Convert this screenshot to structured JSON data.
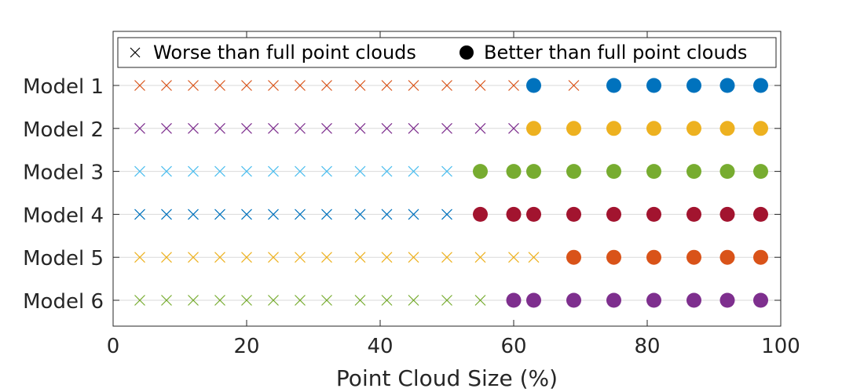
{
  "chart_data": {
    "type": "scatter",
    "xlabel": "Point Cloud Size (%)",
    "ylabel": "",
    "xlim": [
      0,
      100
    ],
    "xticks": [
      0,
      20,
      40,
      60,
      80,
      100
    ],
    "grid": "horizontal lines at each model row",
    "legend": {
      "placement": "top",
      "entries": [
        {
          "marker": "x",
          "label": "Worse than full point clouds",
          "color": "#000000"
        },
        {
          "marker": "filled-circle",
          "label": "Better than full point clouds",
          "color": "#000000"
        }
      ]
    },
    "x": [
      4,
      8,
      12,
      16,
      20,
      24,
      28,
      32,
      37,
      41,
      45,
      50,
      55,
      60,
      63,
      69,
      75,
      81,
      87,
      92,
      97
    ],
    "categories": [
      "Model 1",
      "Model 2",
      "Model 3",
      "Model 4",
      "Model 5",
      "Model 6"
    ],
    "series": [
      {
        "name": "Model 1",
        "x_color": "#D95319",
        "dot_color": "#0072BD",
        "x": [
          4,
          8,
          12,
          16,
          20,
          24,
          28,
          32,
          37,
          41,
          45,
          50,
          55,
          60,
          63,
          69,
          75,
          81,
          87,
          92,
          97
        ],
        "marker": [
          "x",
          "x",
          "x",
          "x",
          "x",
          "x",
          "x",
          "x",
          "x",
          "x",
          "x",
          "x",
          "x",
          "x",
          "o",
          "x",
          "o",
          "o",
          "o",
          "o",
          "o"
        ]
      },
      {
        "name": "Model 2",
        "x_color": "#7E2F8E",
        "dot_color": "#EDB120",
        "x": [
          4,
          8,
          12,
          16,
          20,
          24,
          28,
          32,
          37,
          41,
          45,
          50,
          55,
          60,
          63,
          69,
          75,
          81,
          87,
          92,
          97
        ],
        "marker": [
          "x",
          "x",
          "x",
          "x",
          "x",
          "x",
          "x",
          "x",
          "x",
          "x",
          "x",
          "x",
          "x",
          "x",
          "o",
          "o",
          "o",
          "o",
          "o",
          "o",
          "o"
        ]
      },
      {
        "name": "Model 3",
        "x_color": "#4DBEEE",
        "dot_color": "#77AC30",
        "x": [
          4,
          8,
          12,
          16,
          20,
          24,
          28,
          32,
          37,
          41,
          45,
          50,
          55,
          60,
          63,
          69,
          75,
          81,
          87,
          92,
          97
        ],
        "marker": [
          "x",
          "x",
          "x",
          "x",
          "x",
          "x",
          "x",
          "x",
          "x",
          "x",
          "x",
          "x",
          "o",
          "o",
          "o",
          "o",
          "o",
          "o",
          "o",
          "o",
          "o"
        ]
      },
      {
        "name": "Model 4",
        "x_color": "#0072BD",
        "dot_color": "#A2142F",
        "x": [
          4,
          8,
          12,
          16,
          20,
          24,
          28,
          32,
          37,
          41,
          45,
          50,
          55,
          60,
          63,
          69,
          75,
          81,
          87,
          92,
          97
        ],
        "marker": [
          "x",
          "x",
          "x",
          "x",
          "x",
          "x",
          "x",
          "x",
          "x",
          "x",
          "x",
          "x",
          "o",
          "o",
          "o",
          "o",
          "o",
          "o",
          "o",
          "o",
          "o"
        ]
      },
      {
        "name": "Model 5",
        "x_color": "#EDB120",
        "dot_color": "#D95319",
        "x": [
          4,
          8,
          12,
          16,
          20,
          24,
          28,
          32,
          37,
          41,
          45,
          50,
          55,
          60,
          63,
          69,
          75,
          81,
          87,
          92,
          97
        ],
        "marker": [
          "x",
          "x",
          "x",
          "x",
          "x",
          "x",
          "x",
          "x",
          "x",
          "x",
          "x",
          "x",
          "x",
          "x",
          "x",
          "o",
          "o",
          "o",
          "o",
          "o",
          "o"
        ]
      },
      {
        "name": "Model 6",
        "x_color": "#77AC30",
        "dot_color": "#7E2F8E",
        "x": [
          4,
          8,
          12,
          16,
          20,
          24,
          28,
          32,
          37,
          41,
          45,
          50,
          55,
          60,
          63,
          69,
          75,
          81,
          87,
          92,
          97
        ],
        "marker": [
          "x",
          "x",
          "x",
          "x",
          "x",
          "x",
          "x",
          "x",
          "x",
          "x",
          "x",
          "x",
          "x",
          "o",
          "o",
          "o",
          "o",
          "o",
          "o",
          "o",
          "o"
        ]
      }
    ]
  }
}
